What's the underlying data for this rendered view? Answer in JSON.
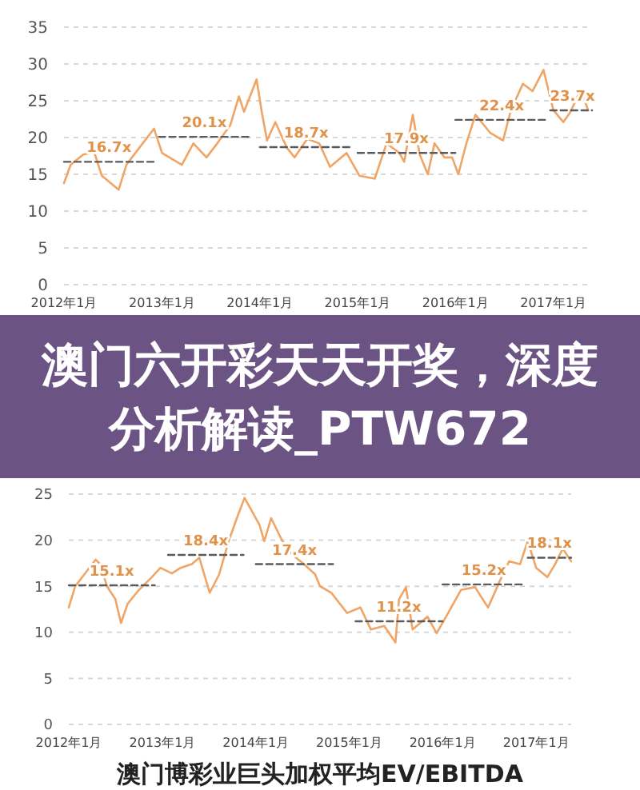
{
  "chart_data": [
    {
      "type": "line",
      "xlim": [
        "2012-01-01",
        "2017-05-25"
      ],
      "xticks": [
        {
          "value": "2012-01-01",
          "label": "2012年1月"
        },
        {
          "value": "2013-01-01",
          "label": "2013年1月"
        },
        {
          "value": "2014-01-01",
          "label": "2014年1月"
        },
        {
          "value": "2015-01-01",
          "label": "2015年1月"
        },
        {
          "value": "2016-01-01",
          "label": "2016年1月"
        },
        {
          "value": "2017-01-01",
          "label": "2017年1月"
        }
      ],
      "ylim": [
        0,
        35
      ],
      "yticks": [
        0,
        5,
        10,
        15,
        20,
        25,
        30,
        35
      ],
      "grid": "y",
      "series": [
        {
          "color": "#f0a566",
          "x": [
            "2012-01-01",
            "2012-01-26",
            "2012-03-13",
            "2012-04-23",
            "2012-05-21",
            "2012-07-23",
            "2012-08-21",
            "2012-10-08",
            "2012-12-02",
            "2013-01-01",
            "2013-03-16",
            "2013-04-28",
            "2013-06-16",
            "2013-07-26",
            "2013-09-13",
            "2013-10-15",
            "2013-11-03",
            "2013-12-20",
            "2014-01-08",
            "2014-01-28",
            "2014-02-28",
            "2014-04-12",
            "2014-05-11",
            "2014-06-27",
            "2014-08-11",
            "2014-09-20",
            "2014-11-21",
            "2015-01-08",
            "2015-03-06",
            "2015-04-19",
            "2015-06-06",
            "2015-06-24",
            "2015-07-26",
            "2015-08-21",
            "2015-09-20",
            "2015-10-15",
            "2015-11-21",
            "2015-12-20",
            "2016-01-12",
            "2016-02-11",
            "2016-03-16",
            "2016-05-11",
            "2016-06-27",
            "2016-07-26",
            "2016-09-09",
            "2016-10-15",
            "2016-11-25",
            "2017-01-01",
            "2017-02-07",
            "2017-03-06",
            "2017-04-12",
            "2017-05-11"
          ],
          "values": [
            13.8,
            16.3,
            17.7,
            18,
            14.8,
            12.9,
            16.3,
            18.6,
            21.2,
            17.9,
            16.3,
            19.2,
            17.3,
            19.2,
            21.7,
            25.6,
            23.5,
            27.9,
            23.5,
            19.6,
            22.1,
            18.6,
            17.3,
            19.8,
            19.2,
            16,
            17.9,
            14.8,
            14.4,
            19.2,
            17.9,
            16.7,
            23.1,
            17.7,
            15,
            19.2,
            17.3,
            17.3,
            15,
            19.2,
            23.1,
            20.6,
            19.6,
            23.7,
            27.3,
            26.3,
            29.2,
            23.7,
            22.1,
            23.5,
            26.5,
            23.7
          ]
        },
        {
          "line_style": "dashed",
          "color": "#5a5a5a",
          "x": [
            "2012-01-01",
            "2012-06-17",
            "2012-12-02"
          ],
          "values": [
            16.7,
            16.7,
            16.7
          ],
          "value_labels": [
            null,
            "16.7x",
            null
          ]
        },
        {
          "line_style": "dashed",
          "color": "#5a5a5a",
          "x": [
            "2012-12-20",
            "2013-06-08",
            "2013-11-25"
          ],
          "values": [
            20.1,
            20.1,
            20.1
          ],
          "value_labels": [
            null,
            "20.1x",
            null
          ]
        },
        {
          "line_style": "dashed",
          "color": "#5a5a5a",
          "x": [
            "2014-01-01",
            "2014-06-23",
            "2014-12-13"
          ],
          "values": [
            18.7,
            18.7,
            18.7
          ],
          "value_labels": [
            null,
            "18.7x",
            null
          ]
        },
        {
          "line_style": "dashed",
          "color": "#5a5a5a",
          "x": [
            "2015-01-01",
            "2015-07-02",
            "2016-01-01"
          ],
          "values": [
            17.9,
            17.9,
            17.9
          ],
          "value_labels": [
            null,
            "17.9x",
            null
          ]
        },
        {
          "line_style": "dashed",
          "color": "#5a5a5a",
          "x": [
            "2016-01-01",
            "2016-06-22",
            "2016-12-13"
          ],
          "values": [
            22.4,
            22.4,
            22.4
          ],
          "value_labels": [
            null,
            "22.4x",
            null
          ]
        },
        {
          "line_style": "dashed",
          "color": "#5a5a5a",
          "x": [
            "2016-12-20",
            "2017-03-13",
            "2017-05-25"
          ],
          "values": [
            23.7,
            23.7,
            23.7
          ],
          "value_labels": [
            null,
            "23.7x",
            null
          ]
        }
      ]
    },
    {
      "type": "other",
      "title": "澳门六开彩天天开奖，深度分析解读_PTW672"
    },
    {
      "type": "line",
      "title": "澳门博彩业巨头加权平均EV/EBITDA",
      "xlim": [
        "2012-01-01",
        "2017-05-18"
      ],
      "xticks": [
        {
          "value": "2012-01-01",
          "label": "2012年1月"
        },
        {
          "value": "2013-01-01",
          "label": "2013年1月"
        },
        {
          "value": "2014-01-01",
          "label": "2014年1月"
        },
        {
          "value": "2015-01-01",
          "label": "2015年1月"
        },
        {
          "value": "2016-01-01",
          "label": "2016年1月"
        },
        {
          "value": "2017-01-01",
          "label": "2017年1月"
        }
      ],
      "ylim": [
        0,
        25
      ],
      "yticks": [
        0,
        5,
        10,
        15,
        20,
        25
      ],
      "grid": "y",
      "series": [
        {
          "color": "#f0a566",
          "x": [
            "2012-01-01",
            "2012-01-26",
            "2012-03-02",
            "2012-04-15",
            "2012-05-03",
            "2012-05-29",
            "2012-07-01",
            "2012-07-23",
            "2012-08-18",
            "2012-10-01",
            "2012-11-21",
            "2012-12-24",
            "2013-02-07",
            "2013-03-13",
            "2013-04-26",
            "2013-05-25",
            "2013-07-05",
            "2013-08-11",
            "2013-09-17",
            "2013-10-19",
            "2013-11-18",
            "2014-01-15",
            "2014-02-03",
            "2014-03-02",
            "2014-04-15",
            "2014-05-25",
            "2014-07-08",
            "2014-08-21",
            "2014-09-09",
            "2014-10-23",
            "2014-12-24",
            "2015-02-14",
            "2015-03-27",
            "2015-05-18",
            "2015-07-01",
            "2015-07-15",
            "2015-08-11",
            "2015-09-06",
            "2015-11-03",
            "2015-12-09",
            "2016-01-23",
            "2016-03-13",
            "2016-05-07",
            "2016-06-27",
            "2016-08-14",
            "2016-09-17",
            "2016-10-30",
            "2016-11-29",
            "2017-01-01",
            "2017-02-14",
            "2017-03-16",
            "2017-04-15",
            "2017-05-18"
          ],
          "values": [
            12.7,
            15,
            16.3,
            17.9,
            17.4,
            15,
            13.6,
            11,
            13.1,
            14.6,
            16,
            17,
            16.4,
            17,
            17.4,
            18.1,
            14.3,
            16.3,
            19.9,
            22.4,
            24.6,
            21.7,
            19.9,
            22.4,
            19.9,
            18.4,
            17.4,
            16.3,
            15,
            14.3,
            12.1,
            12.7,
            10.3,
            10.7,
            8.9,
            13.6,
            14.9,
            10.3,
            11.7,
            9.9,
            12.1,
            14.6,
            14.9,
            12.7,
            15.7,
            17.7,
            17.4,
            19.9,
            17,
            16,
            17.4,
            19.1,
            17.7
          ]
        },
        {
          "line_style": "dashed",
          "color": "#5a5a5a",
          "x": [
            "2012-01-01",
            "2012-06-17",
            "2012-12-02"
          ],
          "values": [
            15.1,
            15.1,
            15.1
          ],
          "value_labels": [
            null,
            "15.1x",
            null
          ]
        },
        {
          "line_style": "dashed",
          "color": "#5a5a5a",
          "x": [
            "2013-01-23",
            "2013-06-19",
            "2013-11-14"
          ],
          "values": [
            18.4,
            18.4,
            18.4
          ],
          "value_labels": [
            null,
            "18.4x",
            null
          ]
        },
        {
          "line_style": "dashed",
          "color": "#5a5a5a",
          "x": [
            "2014-01-01",
            "2014-06-01",
            "2014-10-30"
          ],
          "values": [
            17.4,
            17.4,
            17.4
          ],
          "value_labels": [
            null,
            "17.4x",
            null
          ]
        },
        {
          "line_style": "dashed",
          "color": "#5a5a5a",
          "x": [
            "2015-01-26",
            "2015-07-14",
            "2016-01-01"
          ],
          "values": [
            11.2,
            11.2,
            11.2
          ],
          "value_labels": [
            null,
            "11.2x",
            null
          ]
        },
        {
          "line_style": "dashed",
          "color": "#5a5a5a",
          "x": [
            "2016-01-01",
            "2016-06-10",
            "2016-11-18"
          ],
          "values": [
            15.2,
            15.2,
            15.2
          ],
          "value_labels": [
            null,
            "15.2x",
            null
          ]
        },
        {
          "line_style": "dashed",
          "color": "#5a5a5a",
          "x": [
            "2016-11-29",
            "2017-02-22",
            "2017-05-18"
          ],
          "values": [
            18.1,
            18.1,
            18.1
          ],
          "value_labels": [
            null,
            "18.1x",
            null
          ]
        }
      ]
    }
  ]
}
